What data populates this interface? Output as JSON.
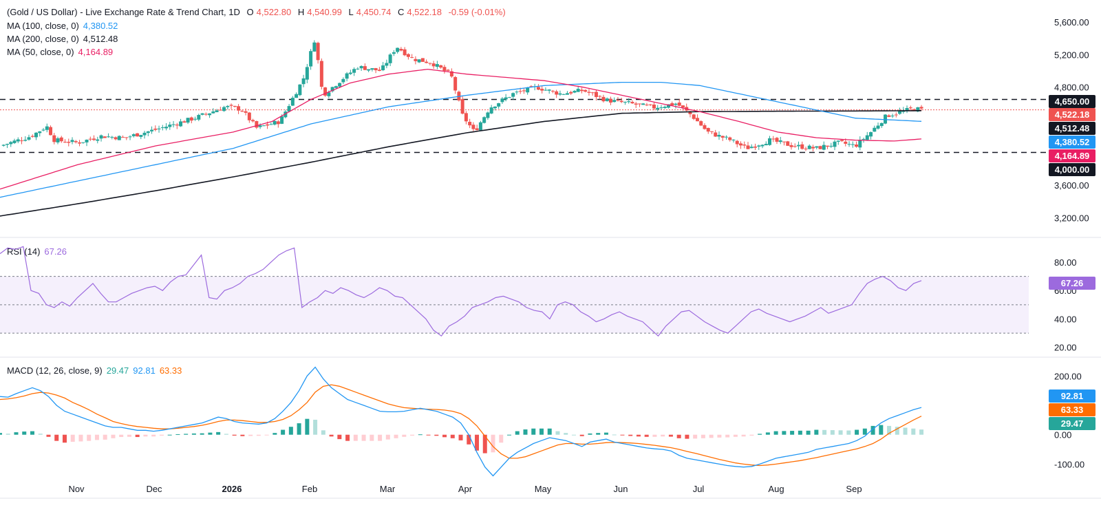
{
  "header": {
    "symbol": "(Gold / US Dollar) - Live Exchange Rate & Trend Chart, 1D",
    "o_label": "O",
    "o": "4,522.80",
    "h_label": "H",
    "h": "4,540.99",
    "l_label": "L",
    "l": "4,450.74",
    "c_label": "C",
    "c": "4,522.18",
    "change": "-0.59 (-0.01%)",
    "ma100_label": "MA (100, close, 0)",
    "ma100_value": "4,380.52",
    "ma200_label": "MA (200, close, 0)",
    "ma200_value": "4,512.48",
    "ma50_label": "MA (50, close, 0)",
    "ma50_value": "4,164.89"
  },
  "price_tags": {
    "resistance": "4,650.00",
    "last": "4,522.18",
    "ma200": "4,512.48",
    "ma100": "4,380.52",
    "ma50": "4,164.89",
    "support": "4,000.00"
  },
  "rsi_legend": {
    "label": "RSI (14)",
    "value": "67.26"
  },
  "rsi_tag": "67.26",
  "macd_legend": {
    "label": "MACD (12, 26, close, 9)",
    "hist": "29.47",
    "macd": "92.81",
    "signal": "63.33"
  },
  "macd_tags": {
    "macd": "92.81",
    "signal": "63.33",
    "hist": "29.47"
  },
  "colors": {
    "up": "#26a69a",
    "down": "#ef5350",
    "ma100": "#2196f3",
    "ma200": "#131722",
    "ma50": "#e91e63",
    "rsi": "#9c6ade",
    "macd": "#2196f3",
    "signal": "#ff6d00",
    "hist_up": "#26a69a",
    "hist_up_light": "#b2dfdb",
    "hist_down": "#ef5350",
    "hist_down_light": "#ffcdd2"
  },
  "chart_data": [
    {
      "type": "candlestick",
      "title": "(Gold / US Dollar) - Live Exchange Rate & Trend Chart, 1D",
      "y_ticks": [
        "5,600.00",
        "5,200.00",
        "4,800.00",
        "3,600.00",
        "3,200.00"
      ],
      "ylim": [
        3000,
        5700
      ],
      "x_ticks": [
        "Nov",
        "Dec",
        "2026",
        "Feb",
        "Mar",
        "Apr",
        "May",
        "Jun",
        "Jul",
        "Aug",
        "Sep"
      ],
      "horizontal_levels": [
        4650,
        4000
      ],
      "last_price": 4522.18,
      "close_path": [
        [
          0,
          4080
        ],
        [
          0.4,
          4200
        ],
        [
          0.6,
          4320
        ],
        [
          0.7,
          4150
        ],
        [
          1.0,
          4120
        ],
        [
          1.3,
          4200
        ],
        [
          1.6,
          4180
        ],
        [
          2.0,
          4280
        ],
        [
          2.5,
          4420
        ],
        [
          2.9,
          4560
        ],
        [
          3.1,
          4530
        ],
        [
          3.3,
          4300
        ],
        [
          3.6,
          4380
        ],
        [
          3.9,
          4900
        ],
        [
          4.05,
          5400
        ],
        [
          4.15,
          4700
        ],
        [
          4.4,
          4900
        ],
        [
          4.6,
          5050
        ],
        [
          4.9,
          5000
        ],
        [
          5.1,
          5300
        ],
        [
          5.3,
          5150
        ],
        [
          5.55,
          5100
        ],
        [
          5.8,
          4950
        ],
        [
          5.95,
          4450
        ],
        [
          6.1,
          4250
        ],
        [
          6.3,
          4550
        ],
        [
          6.6,
          4720
        ],
        [
          6.9,
          4800
        ],
        [
          7.2,
          4720
        ],
        [
          7.5,
          4760
        ],
        [
          7.8,
          4640
        ],
        [
          8.1,
          4600
        ],
        [
          8.4,
          4550
        ],
        [
          8.7,
          4600
        ],
        [
          8.9,
          4450
        ],
        [
          9.1,
          4250
        ],
        [
          9.4,
          4150
        ],
        [
          9.6,
          4050
        ],
        [
          9.9,
          4150
        ],
        [
          10.2,
          4080
        ],
        [
          10.5,
          4050
        ],
        [
          10.8,
          4120
        ],
        [
          11.0,
          4080
        ],
        [
          11.2,
          4250
        ],
        [
          11.4,
          4450
        ],
        [
          11.6,
          4500
        ],
        [
          11.75,
          4540
        ],
        [
          11.85,
          4522
        ]
      ],
      "ma50": [
        [
          0,
          3550
        ],
        [
          1.0,
          3850
        ],
        [
          2.0,
          4080
        ],
        [
          3.0,
          4250
        ],
        [
          3.5,
          4380
        ],
        [
          4.0,
          4650
        ],
        [
          4.5,
          4850
        ],
        [
          5.0,
          4960
        ],
        [
          5.5,
          5020
        ],
        [
          6.0,
          4960
        ],
        [
          6.5,
          4920
        ],
        [
          7.0,
          4880
        ],
        [
          7.5,
          4800
        ],
        [
          8.0,
          4700
        ],
        [
          8.5,
          4600
        ],
        [
          9.0,
          4500
        ],
        [
          9.5,
          4380
        ],
        [
          10.0,
          4250
        ],
        [
          10.5,
          4180
        ],
        [
          11.0,
          4150
        ],
        [
          11.5,
          4140
        ],
        [
          11.85,
          4165
        ]
      ],
      "ma100": [
        [
          0,
          3450
        ],
        [
          1.0,
          3650
        ],
        [
          2.0,
          3850
        ],
        [
          3.0,
          4050
        ],
        [
          4.0,
          4350
        ],
        [
          5.0,
          4560
        ],
        [
          6.0,
          4700
        ],
        [
          6.5,
          4760
        ],
        [
          7.0,
          4820
        ],
        [
          7.5,
          4840
        ],
        [
          8.0,
          4860
        ],
        [
          8.5,
          4860
        ],
        [
          9.0,
          4820
        ],
        [
          9.5,
          4720
        ],
        [
          10.0,
          4620
        ],
        [
          10.5,
          4520
        ],
        [
          11.0,
          4420
        ],
        [
          11.85,
          4381
        ]
      ],
      "ma200": [
        [
          0,
          3220
        ],
        [
          1.0,
          3370
        ],
        [
          2.0,
          3530
        ],
        [
          3.0,
          3700
        ],
        [
          4.0,
          3880
        ],
        [
          5.0,
          4070
        ],
        [
          6.0,
          4240
        ],
        [
          7.0,
          4380
        ],
        [
          8.0,
          4480
        ],
        [
          9.0,
          4500
        ],
        [
          10.0,
          4505
        ],
        [
          11.0,
          4508
        ],
        [
          11.85,
          4512
        ]
      ]
    },
    {
      "type": "line",
      "title": "RSI (14)",
      "y_ticks": [
        "80.00",
        "60.00",
        "40.00",
        "20.00"
      ],
      "ylim": [
        15,
        95
      ],
      "band": [
        30,
        70
      ],
      "midline": 50,
      "last_value": 67.26,
      "values": [
        86,
        90,
        89,
        91,
        60,
        58,
        50,
        48,
        52,
        49,
        55,
        60,
        65,
        58,
        52,
        52,
        55,
        58,
        60,
        62,
        63,
        60,
        66,
        70,
        71,
        78,
        85,
        55,
        54,
        60,
        62,
        65,
        70,
        72,
        75,
        80,
        85,
        88,
        90,
        48,
        52,
        55,
        60,
        58,
        62,
        60,
        57,
        55,
        58,
        62,
        60,
        56,
        55,
        50,
        45,
        40,
        32,
        28,
        35,
        38,
        42,
        48,
        50,
        52,
        55,
        56,
        54,
        52,
        48,
        46,
        45,
        40,
        50,
        52,
        50,
        45,
        42,
        38,
        40,
        43,
        45,
        42,
        40,
        38,
        33,
        28,
        35,
        40,
        45,
        46,
        42,
        38,
        35,
        32,
        30,
        35,
        40,
        45,
        47,
        44,
        42,
        40,
        38,
        40,
        42,
        45,
        48,
        44,
        46,
        48,
        50,
        58,
        65,
        68,
        70,
        67,
        62,
        60,
        65,
        67
      ]
    },
    {
      "type": "line",
      "title": "MACD (12, 26, close, 9)",
      "y_ticks": [
        "200.00",
        "0.00",
        "-100.00"
      ],
      "ylim": [
        -160,
        250
      ],
      "series": [
        {
          "name": "MACD",
          "values": [
            130,
            128,
            140,
            150,
            160,
            150,
            130,
            100,
            80,
            70,
            60,
            50,
            40,
            30,
            25,
            25,
            20,
            15,
            15,
            12,
            15,
            20,
            25,
            30,
            35,
            40,
            50,
            60,
            55,
            45,
            40,
            38,
            36,
            40,
            55,
            80,
            110,
            150,
            200,
            230,
            190,
            160,
            140,
            120,
            110,
            100,
            90,
            80,
            78,
            78,
            80,
            85,
            90,
            85,
            80,
            70,
            60,
            40,
            0,
            -60,
            -110,
            -140,
            -110,
            -80,
            -60,
            -45,
            -30,
            -20,
            -10,
            -15,
            -20,
            -30,
            -40,
            -25,
            -20,
            -15,
            -25,
            -30,
            -35,
            -40,
            -45,
            -48,
            -50,
            -55,
            -70,
            -80,
            -85,
            -90,
            -95,
            -100,
            -105,
            -108,
            -110,
            -108,
            -100,
            -90,
            -80,
            -75,
            -70,
            -65,
            -60,
            -50,
            -45,
            -40,
            -35,
            -30,
            -20,
            -5,
            20,
            40,
            55,
            65,
            75,
            85,
            92.81
          ]
        },
        {
          "name": "Signal",
          "values": [
            120,
            122,
            126,
            132,
            140,
            144,
            142,
            135,
            125,
            110,
            98,
            85,
            70,
            58,
            45,
            38,
            32,
            28,
            25,
            22,
            20,
            20,
            22,
            25,
            28,
            32,
            38,
            45,
            50,
            50,
            48,
            45,
            42,
            42,
            45,
            52,
            65,
            85,
            110,
            145,
            165,
            170,
            165,
            155,
            145,
            135,
            125,
            115,
            105,
            98,
            92,
            90,
            88,
            87,
            86,
            84,
            80,
            72,
            55,
            30,
            -5,
            -40,
            -65,
            -80,
            -80,
            -75,
            -65,
            -55,
            -45,
            -35,
            -30,
            -30,
            -32,
            -32,
            -30,
            -27,
            -26,
            -27,
            -28,
            -30,
            -33,
            -36,
            -40,
            -44,
            -50,
            -57,
            -63,
            -70,
            -77,
            -84,
            -90,
            -96,
            -100,
            -103,
            -105,
            -103,
            -100,
            -96,
            -92,
            -88,
            -83,
            -78,
            -72,
            -66,
            -60,
            -54,
            -48,
            -40,
            -30,
            -15,
            5,
            20,
            35,
            50,
            63.33
          ]
        }
      ],
      "histogram_last": 29.47
    }
  ]
}
